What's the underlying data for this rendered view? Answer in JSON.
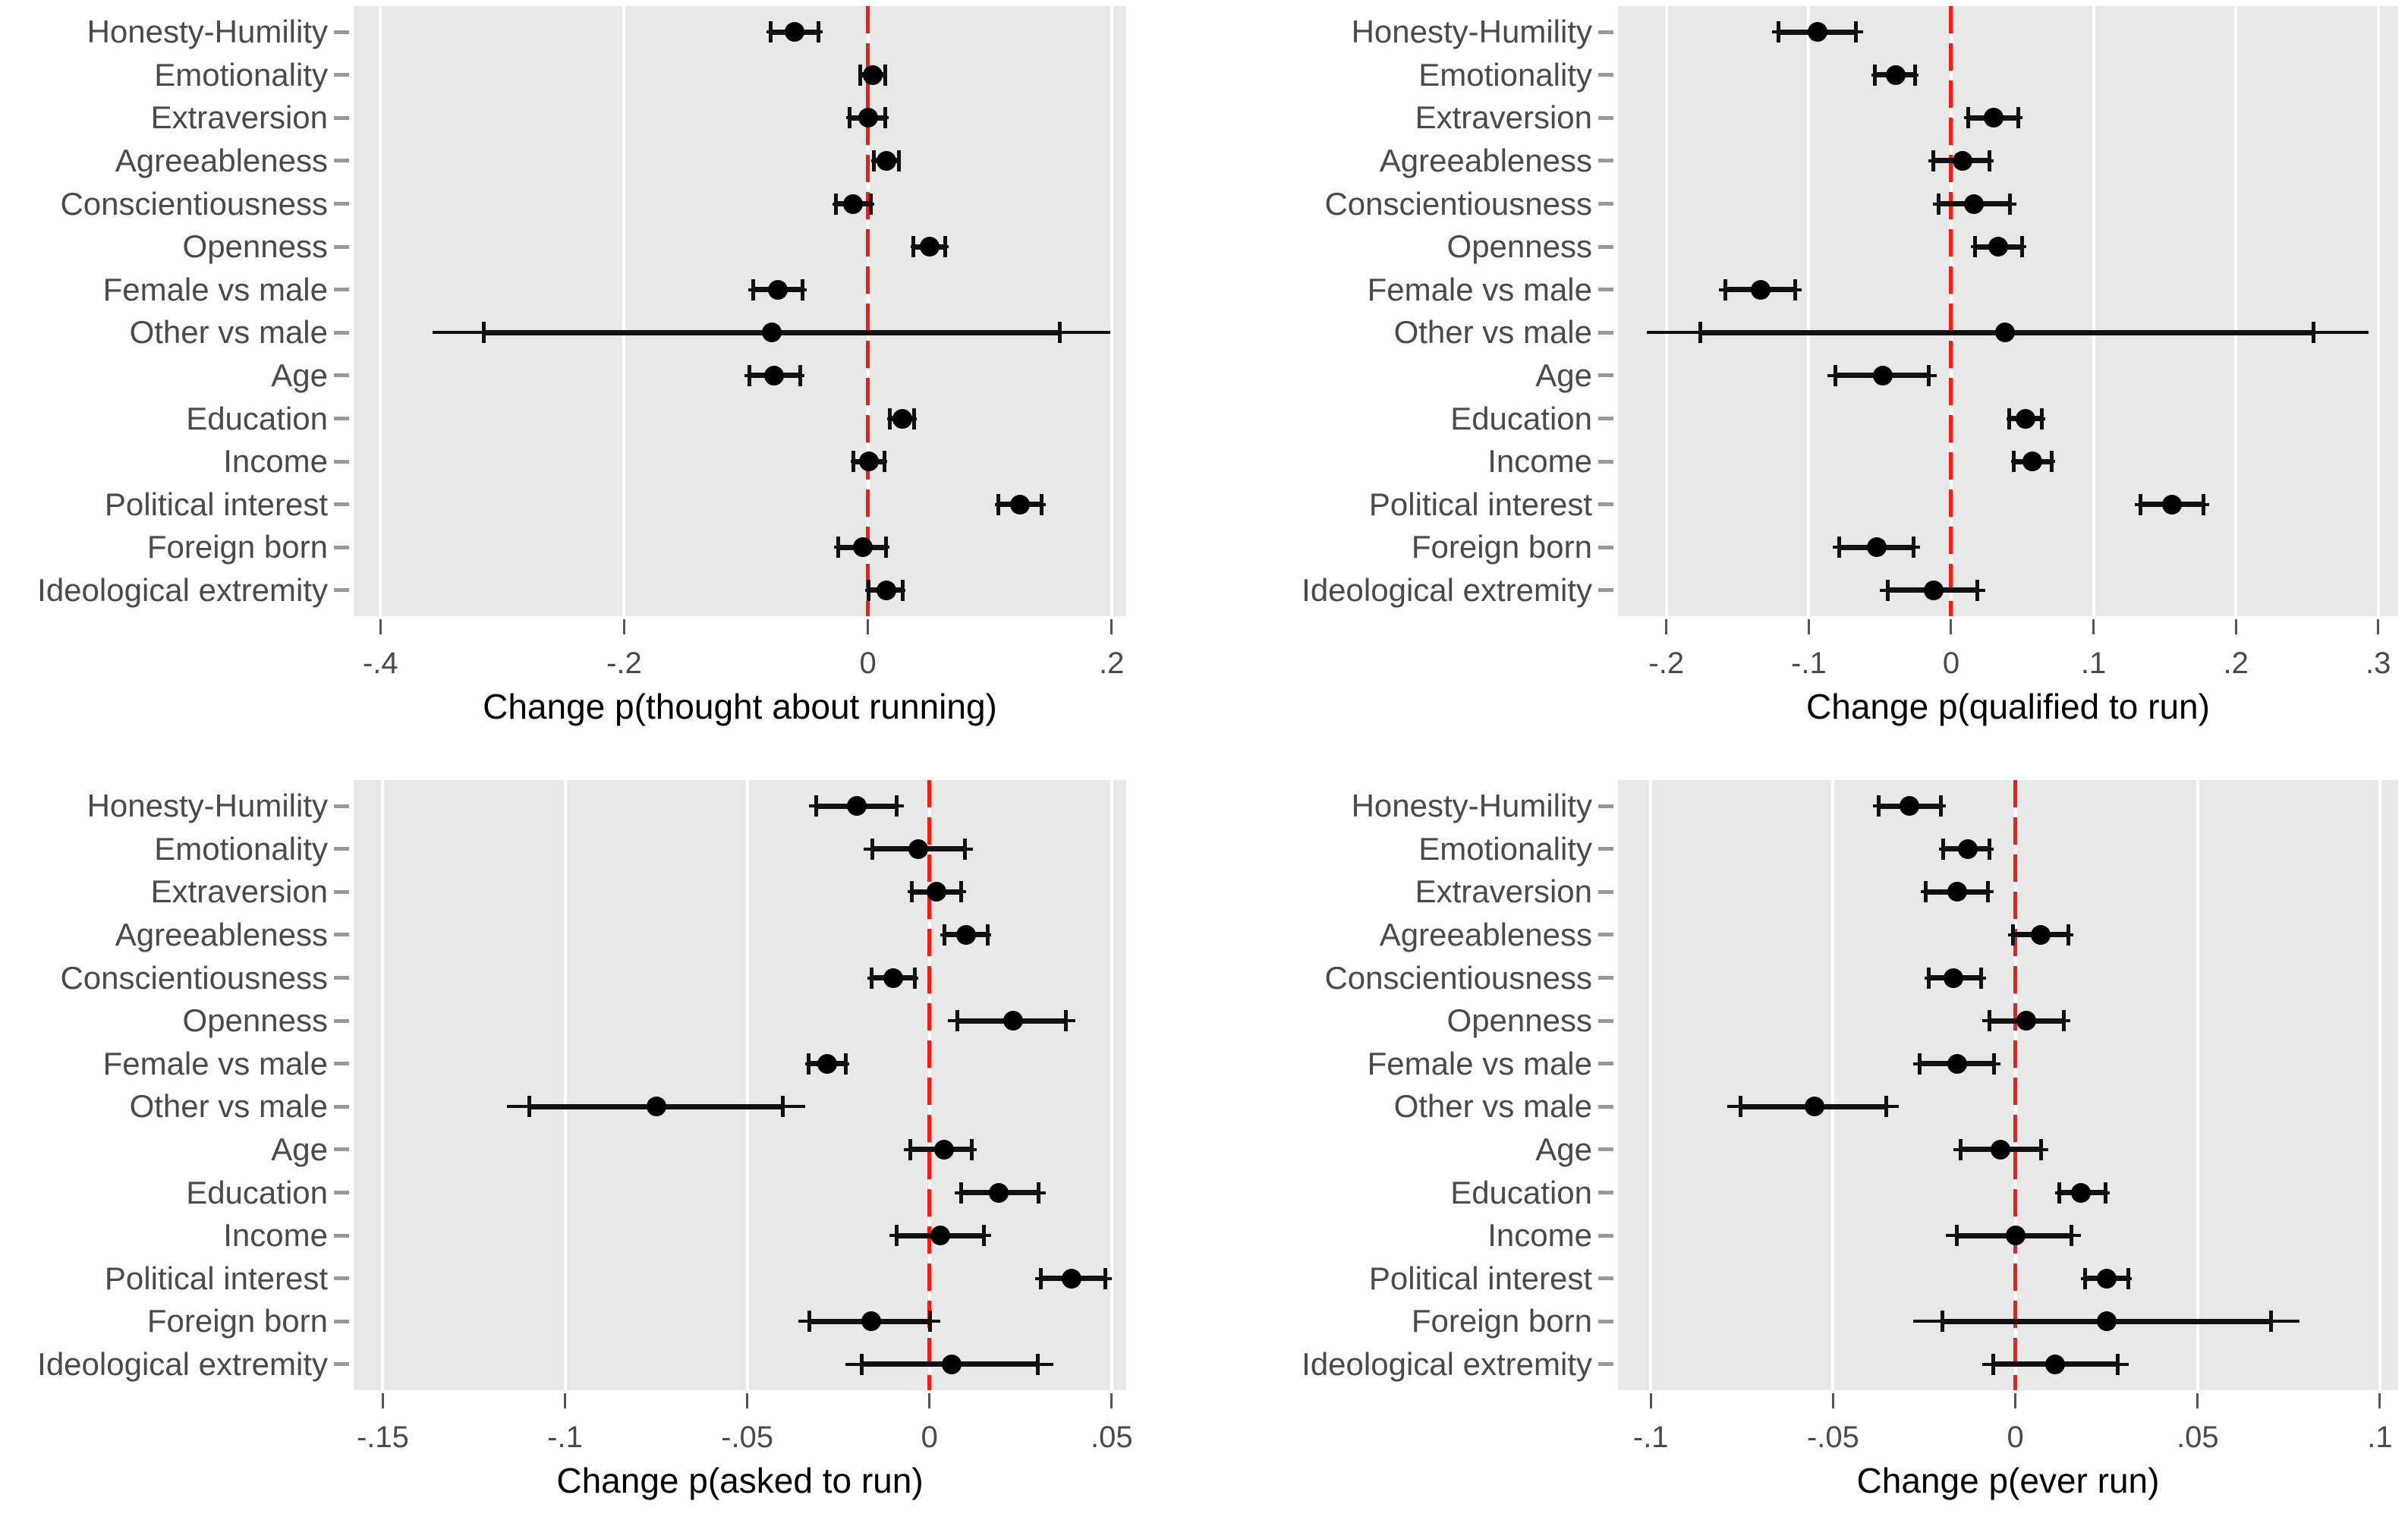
{
  "figure": {
    "description": "2x2 grid of dot-and-whisker coefficient plots with a dashed red zero line",
    "background": "#ffffff"
  },
  "styles": {
    "plot_bg": "#e8e8e8",
    "gridline": "#ffffff",
    "zero_line_red": "#fb1b0e",
    "marker_color": "#000000",
    "ci_color": "#111111",
    "category_label_color": "#4a4a4a",
    "x_tick_label_color": "#4a4a4a",
    "axis_title_color": "#000000",
    "y_tick_color": "#999999",
    "x_tick_color": "#555555"
  },
  "chart_data": {
    "type": "scatter",
    "subtype": "coefficient-dot-whisker",
    "layout": "2x2 panels, shared category axis, horizontal 95% CIs with capped whiskers, red dashed reference line at 0",
    "grid": "vertical white gridlines at each x tick",
    "legend_position": "none",
    "categories": [
      "Honesty-Humility",
      "Emotionality",
      "Extraversion",
      "Agreeableness",
      "Conscientiousness",
      "Openness",
      "Female vs male",
      "Other vs male",
      "Age",
      "Education",
      "Income",
      "Political interest",
      "Foreign born",
      "Ideological extremity"
    ],
    "panels": [
      {
        "title": "Change p(thought about running)",
        "xlim": [
          -0.422,
          0.212
        ],
        "xticks": [
          -0.4,
          -0.2,
          0,
          0.2
        ],
        "xtick_labels": [
          "-.4",
          "-.2",
          "0",
          ".2"
        ],
        "zero_line": 0,
        "estimates": [
          -0.06,
          0.004,
          0.0,
          0.015,
          -0.012,
          0.051,
          -0.074,
          -0.079,
          -0.077,
          0.028,
          0.001,
          0.125,
          -0.004,
          0.015
        ],
        "ci_low": [
          -0.083,
          -0.008,
          -0.018,
          0.003,
          -0.029,
          0.035,
          -0.098,
          -0.357,
          -0.101,
          0.016,
          -0.014,
          0.104,
          -0.028,
          -0.002
        ],
        "ci_high": [
          -0.037,
          0.016,
          0.017,
          0.027,
          0.005,
          0.066,
          -0.05,
          0.199,
          -0.052,
          0.04,
          0.016,
          0.146,
          0.018,
          0.031
        ]
      },
      {
        "title": "Change p(qualified to run)",
        "xlim": [
          -0.234,
          0.314
        ],
        "xticks": [
          -0.2,
          -0.1,
          0,
          0.1,
          0.2,
          0.3
        ],
        "xtick_labels": [
          "-.2",
          "-.1",
          "0",
          ".1",
          ".2",
          ".3"
        ],
        "zero_line": 0,
        "estimates": [
          -0.094,
          -0.039,
          0.03,
          0.008,
          0.016,
          0.033,
          -0.134,
          0.038,
          -0.048,
          0.052,
          0.057,
          0.155,
          -0.052,
          -0.012
        ],
        "ci_low": [
          -0.126,
          -0.056,
          0.009,
          -0.016,
          -0.013,
          0.014,
          -0.163,
          -0.214,
          -0.087,
          0.039,
          0.042,
          0.129,
          -0.083,
          -0.05
        ],
        "ci_high": [
          -0.062,
          -0.023,
          0.05,
          0.03,
          0.046,
          0.053,
          -0.105,
          0.293,
          -0.01,
          0.066,
          0.073,
          0.181,
          -0.022,
          0.024
        ]
      },
      {
        "title": "Change p(asked to run)",
        "xlim": [
          -0.158,
          0.054
        ],
        "xticks": [
          -0.15,
          -0.1,
          -0.05,
          0,
          0.05
        ],
        "xtick_labels": [
          "-.15",
          "-.1",
          "-.05",
          "0",
          ".05"
        ],
        "zero_line": 0,
        "estimates": [
          -0.02,
          -0.003,
          0.002,
          0.01,
          -0.01,
          0.023,
          -0.028,
          -0.075,
          0.004,
          0.019,
          0.003,
          0.039,
          -0.016,
          0.006
        ],
        "ci_low": [
          -0.033,
          -0.018,
          -0.006,
          0.003,
          -0.017,
          0.005,
          -0.034,
          -0.116,
          -0.007,
          0.007,
          -0.011,
          0.029,
          -0.036,
          -0.023
        ],
        "ci_high": [
          -0.007,
          0.012,
          0.01,
          0.017,
          -0.003,
          0.04,
          -0.022,
          -0.034,
          0.013,
          0.032,
          0.017,
          0.05,
          0.003,
          0.034
        ]
      },
      {
        "title": "Change p(ever run)",
        "xlim": [
          -0.109,
          0.105
        ],
        "xticks": [
          -0.1,
          -0.05,
          0,
          0.05,
          0.1
        ],
        "xtick_labels": [
          "-.1",
          "-.05",
          "0",
          ".05",
          ".1"
        ],
        "zero_line": 0,
        "estimates": [
          -0.029,
          -0.013,
          -0.016,
          0.007,
          -0.017,
          0.003,
          -0.016,
          -0.055,
          -0.004,
          0.018,
          0.0,
          0.025,
          0.025,
          0.011
        ],
        "ci_low": [
          -0.039,
          -0.021,
          -0.026,
          -0.002,
          -0.025,
          -0.009,
          -0.028,
          -0.079,
          -0.017,
          0.011,
          -0.019,
          0.018,
          -0.028,
          -0.009
        ],
        "ci_high": [
          -0.019,
          -0.006,
          -0.006,
          0.016,
          -0.008,
          0.015,
          -0.004,
          -0.032,
          0.009,
          0.026,
          0.018,
          0.032,
          0.078,
          0.031
        ]
      }
    ]
  }
}
